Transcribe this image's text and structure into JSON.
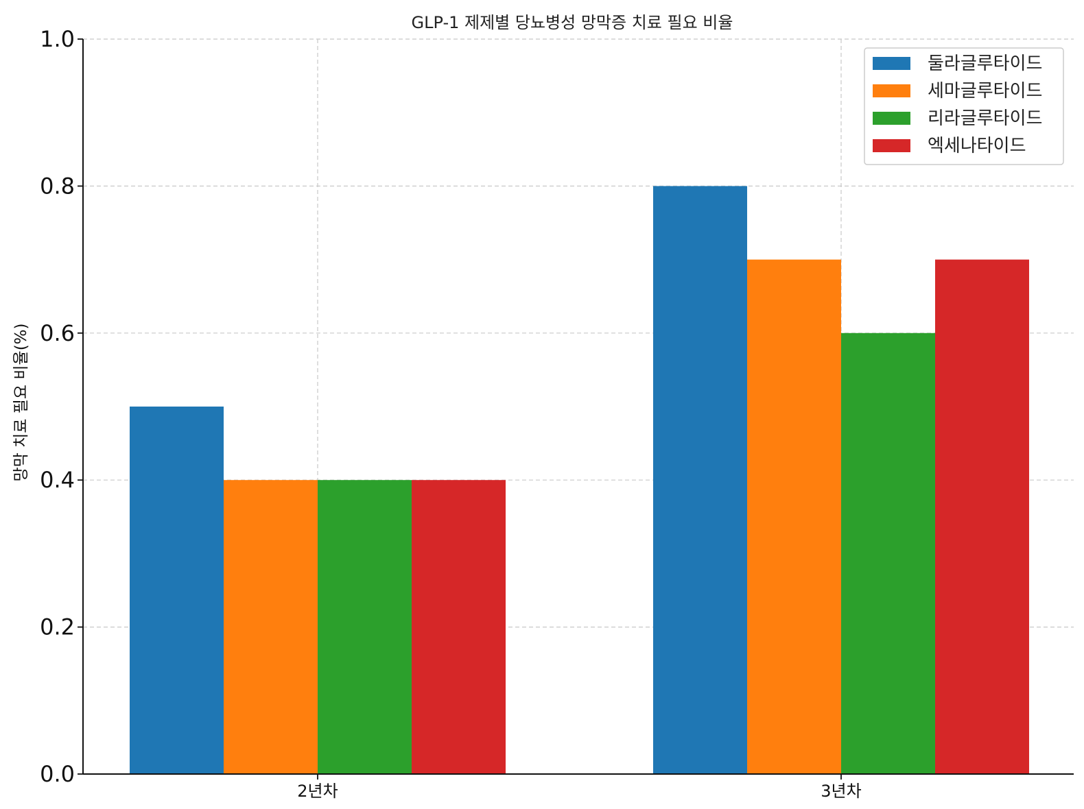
{
  "chart_data": {
    "type": "bar",
    "title": "GLP-1 제제별 당뇨병성 망막증 치료 필요 비율",
    "xlabel": "",
    "ylabel": "망막 치료 필요 비율(%)",
    "categories": [
      "2년차",
      "3년차"
    ],
    "series": [
      {
        "name": "둘라글루타이드",
        "color": "#1f77b4",
        "values": [
          0.5,
          0.8
        ]
      },
      {
        "name": "세마글루타이드",
        "color": "#ff7f0e",
        "values": [
          0.4,
          0.7
        ]
      },
      {
        "name": "리라글루타이드",
        "color": "#2ca02c",
        "values": [
          0.4,
          0.6
        ]
      },
      {
        "name": "엑세나타이드",
        "color": "#d62728",
        "values": [
          0.4,
          0.7
        ]
      }
    ],
    "ylim": [
      0,
      1.0
    ],
    "yticks": [
      "0.0",
      "0.2",
      "0.4",
      "0.6",
      "0.8",
      "1.0"
    ],
    "grid": true,
    "legend_position": "top-right"
  }
}
